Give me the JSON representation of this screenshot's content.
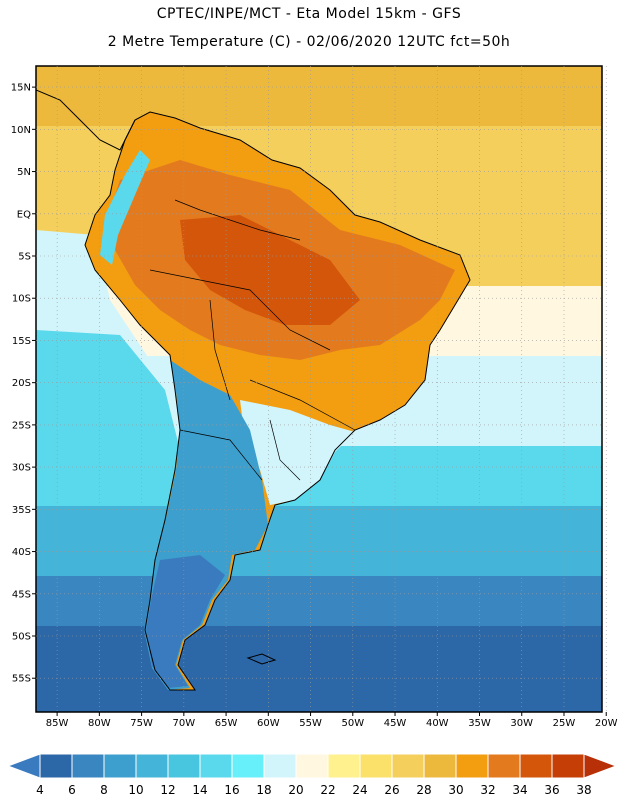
{
  "header": {
    "line1": "CPTEC/INPE/MCT  -   Eta Model 15km  -  GFS",
    "line2": "2 Metre Temperature (C) - 02/06/2020 12UTC fct=50h"
  },
  "axes": {
    "lat_labels": [
      "15N",
      "10N",
      "5N",
      "EQ",
      "5S",
      "10S",
      "15S",
      "20S",
      "25S",
      "30S",
      "35S",
      "40S",
      "45S",
      "50S",
      "55S"
    ],
    "lat_values": [
      15,
      10,
      5,
      0,
      -5,
      -10,
      -15,
      -20,
      -25,
      -30,
      -35,
      -40,
      -45,
      -50,
      -55
    ],
    "lon_labels": [
      "85W",
      "80W",
      "75W",
      "70W",
      "65W",
      "60W",
      "55W",
      "50W",
      "45W",
      "40W",
      "35W",
      "30W",
      "25W",
      "20W"
    ],
    "lon_values": [
      -85,
      -80,
      -75,
      -70,
      -65,
      -60,
      -55,
      -50,
      -45,
      -40,
      -35,
      -30,
      -25,
      -20
    ]
  },
  "colorbar": {
    "labels": [
      "4",
      "6",
      "8",
      "10",
      "12",
      "14",
      "16",
      "18",
      "20",
      "22",
      "24",
      "26",
      "28",
      "30",
      "32",
      "34",
      "36",
      "38"
    ],
    "colors": [
      "#3a7bbf",
      "#2c67a8",
      "#3a86c0",
      "#3d9fcd",
      "#44b4d8",
      "#48c6e0",
      "#5ad8ec",
      "#68f0fa",
      "#d2f4fb",
      "#fff7e0",
      "#fff28e",
      "#fbe16a",
      "#f4cf5c",
      "#edb93c",
      "#f29e10",
      "#e37b1e",
      "#d4560a",
      "#c43e06",
      "#b83008"
    ]
  },
  "palette": {
    "ocean_south_deep": "#2c67a8",
    "ocean_south_mid": "#3a86c0",
    "ocean_mid": "#44b4d8",
    "ocean_light": "#5ad8ec",
    "ocean_pale": "#d2f4fb",
    "ocean_cream": "#fff7e0",
    "ocean_north": "#f4cf5c",
    "ocean_north_warm": "#edb93c",
    "amazon_hot": "#d4560a",
    "amazon_warm": "#e37b1e",
    "brazil_warm": "#f29e10",
    "andes_cool": "#3d9fcd",
    "patagonia": "#3a7bbf",
    "coast": "#000000",
    "grid": "#9a9a9a"
  }
}
